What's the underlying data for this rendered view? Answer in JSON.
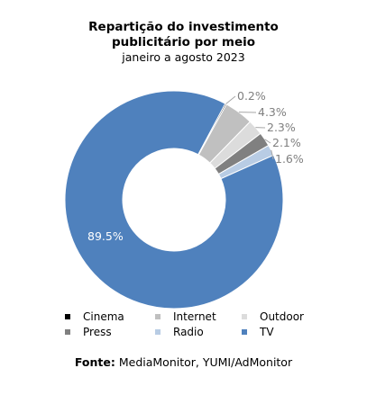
{
  "title_line1": "Repartição do investimento",
  "title_line2": "publicitário por meio",
  "subtitle": "janeiro a agosto 2023",
  "source_label": "Fonte:",
  "source_text": "MediaMonitor, YUMI/AdMonitor",
  "chart_data": {
    "type": "pie",
    "variant": "donut",
    "title": "Repartição do investimento publicitário por meio",
    "subtitle": "janeiro a agosto 2023",
    "slices": [
      {
        "name": "Cinema",
        "value": 0.2,
        "label": "0.2%",
        "color": "#000000"
      },
      {
        "name": "Internet",
        "value": 4.3,
        "label": "4.3%",
        "color": "#c0c0c0"
      },
      {
        "name": "Outdoor",
        "value": 2.3,
        "label": "2.3%",
        "color": "#dcdcdc"
      },
      {
        "name": "Press",
        "value": 2.1,
        "label": "2.1%",
        "color": "#808080"
      },
      {
        "name": "Radio",
        "value": 1.6,
        "label": "1.6%",
        "color": "#b8cce4"
      },
      {
        "name": "TV",
        "value": 89.5,
        "label": "89.5%",
        "color": "#4f81bd"
      }
    ],
    "legend_position": "bottom"
  }
}
